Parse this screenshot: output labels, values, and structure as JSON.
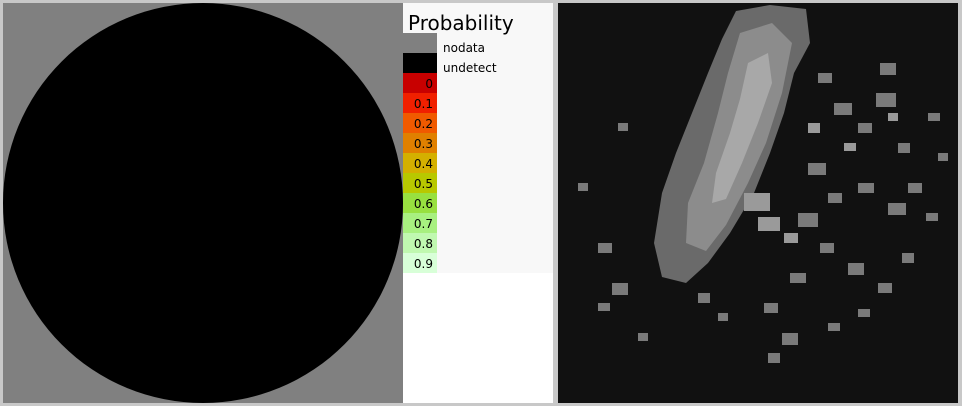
{
  "legend": {
    "title": "Probability",
    "special": [
      {
        "label": "nodata",
        "color": "#808080"
      },
      {
        "label": "undetect",
        "color": "#000000"
      }
    ],
    "scale": [
      {
        "value": "0",
        "color": "#c80000"
      },
      {
        "value": "0.1",
        "color": "#f02000"
      },
      {
        "value": "0.2",
        "color": "#f05a00"
      },
      {
        "value": "0.3",
        "color": "#e08000"
      },
      {
        "value": "0.4",
        "color": "#d4b000"
      },
      {
        "value": "0.5",
        "color": "#b8c800"
      },
      {
        "value": "0.6",
        "color": "#98e040"
      },
      {
        "value": "0.7",
        "color": "#a8f080"
      },
      {
        "value": "0.8",
        "color": "#c0f8b0"
      },
      {
        "value": "0.9",
        "color": "#d8ffd8"
      }
    ]
  },
  "panels": {
    "left_background": "#808080",
    "disc_color": "#000000",
    "right_background": "#111111"
  }
}
